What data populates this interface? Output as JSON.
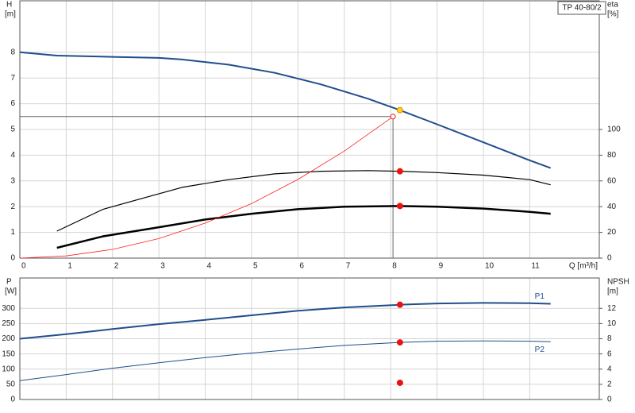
{
  "chart_data": [
    {
      "type": "line",
      "title": "TP 40-80/2",
      "ylabel": "H",
      "yunit": "[m]",
      "y2label": "eta",
      "y2unit": "[%]",
      "xlabel": "Q [m³/h]",
      "xlim": [
        0,
        12.5
      ],
      "xticks": [
        0,
        1,
        2,
        3,
        4,
        5,
        6,
        7,
        8,
        9,
        10,
        11
      ],
      "ylim": [
        0,
        10
      ],
      "yticks": [
        0,
        1,
        2,
        3,
        4,
        5,
        6,
        7,
        8
      ],
      "y2lim": [
        0,
        200
      ],
      "y2ticks": [
        0,
        20,
        40,
        60,
        80,
        100
      ],
      "grid": true,
      "reference": {
        "x": 8.05,
        "y": 5.5
      },
      "series": [
        {
          "color": "#1f4e8c",
          "width": 2,
          "x": [
            0,
            0.8,
            2,
            3,
            3.5,
            4.5,
            5.5,
            6.5,
            7.5,
            8.2,
            9,
            10,
            11,
            11.45
          ],
          "values": [
            8,
            7.87,
            7.82,
            7.78,
            7.72,
            7.52,
            7.2,
            6.75,
            6.2,
            5.75,
            5.2,
            4.5,
            3.8,
            3.5
          ]
        },
        {
          "color": "#000000",
          "width": 1.2,
          "axis": "y2",
          "x": [
            0.8,
            1.8,
            2.8,
            3.5,
            4.5,
            5.5,
            6.5,
            7.5,
            8.2,
            9,
            10,
            11,
            11.45
          ],
          "values": [
            21,
            38,
            48,
            55,
            61,
            65.5,
            67.5,
            68,
            67.5,
            66.5,
            64.5,
            61,
            57
          ]
        },
        {
          "color": "#000000",
          "width": 2.5,
          "axis": "y2",
          "x": [
            0.8,
            1.8,
            3,
            4,
            5,
            6,
            7,
            8.2,
            9,
            10,
            11,
            11.45
          ],
          "values": [
            8,
            17,
            24,
            30,
            34.5,
            38,
            40,
            40.5,
            40,
            38.5,
            36,
            34.5
          ]
        },
        {
          "color": "#ff2020",
          "width": 0.8,
          "x": [
            0,
            1,
            2,
            3,
            4,
            5,
            6,
            7,
            8.05
          ],
          "values": [
            0,
            0.085,
            0.34,
            0.76,
            1.36,
            2.12,
            3.06,
            4.16,
            5.5
          ]
        },
        {
          "color": "#ffd21a",
          "marker": true,
          "x": [
            8.2
          ],
          "values": [
            5.75
          ]
        },
        {
          "color": "#ee1111",
          "marker": true,
          "axis": "y2",
          "x": [
            8.2,
            8.2
          ],
          "values": [
            67.5,
            40.5
          ]
        },
        {
          "color": "#ee1111",
          "marker": true,
          "hollow": true,
          "x": [
            8.05
          ],
          "values": [
            5.5
          ]
        }
      ]
    },
    {
      "type": "line",
      "ylabel": "P",
      "yunit": "[W]",
      "y2label": "NPSH",
      "y2unit": "[m]",
      "xlim": [
        0,
        12.5
      ],
      "xticks": [
        0,
        1,
        2,
        3,
        4,
        5,
        6,
        7,
        8,
        9,
        10,
        11
      ],
      "xtick_labels": false,
      "ylim": [
        0,
        400
      ],
      "yticks": [
        0,
        50,
        100,
        150,
        200,
        250,
        300
      ],
      "y2lim": [
        0,
        16
      ],
      "y2ticks": [
        0,
        2,
        4,
        6,
        8,
        10,
        12
      ],
      "grid": true,
      "series": [
        {
          "name": "P1",
          "color": "#1f4e8c",
          "width": 2,
          "x": [
            0,
            1,
            2,
            3,
            4,
            5,
            6,
            7,
            8.2,
            9,
            10,
            11,
            11.45
          ],
          "values": [
            200,
            215,
            232,
            248,
            262,
            277,
            292,
            303,
            312,
            316,
            318,
            317,
            315
          ]
        },
        {
          "name": "P2",
          "color": "#1f4e8c",
          "width": 1,
          "x": [
            0,
            1,
            2,
            3,
            4,
            5,
            6,
            7,
            8.2,
            9,
            10,
            11,
            11.45
          ],
          "values": [
            62,
            82,
            103,
            121,
            138,
            153,
            166,
            178,
            188,
            192,
            193,
            192,
            190
          ]
        },
        {
          "color": "#ee1111",
          "marker": true,
          "x": [
            8.2,
            8.2
          ],
          "values": [
            312,
            188
          ]
        },
        {
          "color": "#ee1111",
          "marker": true,
          "axis": "y2",
          "x": [
            8.2
          ],
          "values": [
            2.2
          ]
        }
      ]
    }
  ]
}
